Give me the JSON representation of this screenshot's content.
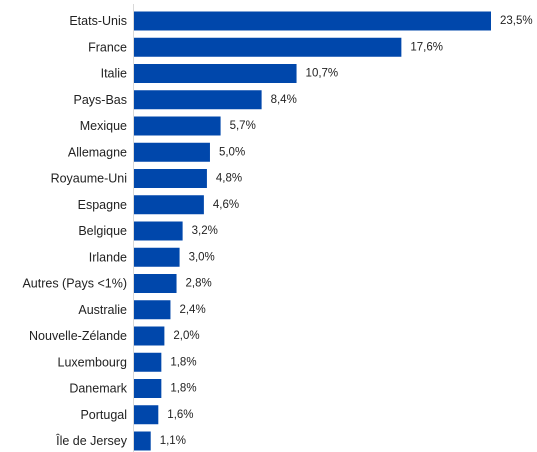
{
  "chart_data": {
    "type": "bar",
    "orientation": "horizontal",
    "title": "",
    "xlabel": "",
    "ylabel": "",
    "categories": [
      "Etats-Unis",
      "France",
      "Italie",
      "Pays-Bas",
      "Mexique",
      "Allemagne",
      "Royaume-Uni",
      "Espagne",
      "Belgique",
      "Irlande",
      "Autres (Pays <1%)",
      "Australie",
      "Nouvelle-Zélande",
      "Luxembourg",
      "Danemark",
      "Portugal",
      "Île de Jersey"
    ],
    "values": [
      23.5,
      17.6,
      10.7,
      8.4,
      5.7,
      5.0,
      4.8,
      4.6,
      3.2,
      3.0,
      2.8,
      2.4,
      2.0,
      1.8,
      1.8,
      1.6,
      1.1
    ],
    "value_labels": [
      "23,5%",
      "17,6%",
      "10,7%",
      "8,4%",
      "5,7%",
      "5,0%",
      "4,8%",
      "4,6%",
      "3,2%",
      "3,0%",
      "2,8%",
      "2,4%",
      "2,0%",
      "1,8%",
      "1,8%",
      "1,6%",
      "1,1%"
    ],
    "unit": "%",
    "xlim": [
      0,
      23.5
    ],
    "grid": false,
    "legend": "none",
    "bar_color": "#0047AB",
    "axis_color": "#D9D9D9"
  }
}
